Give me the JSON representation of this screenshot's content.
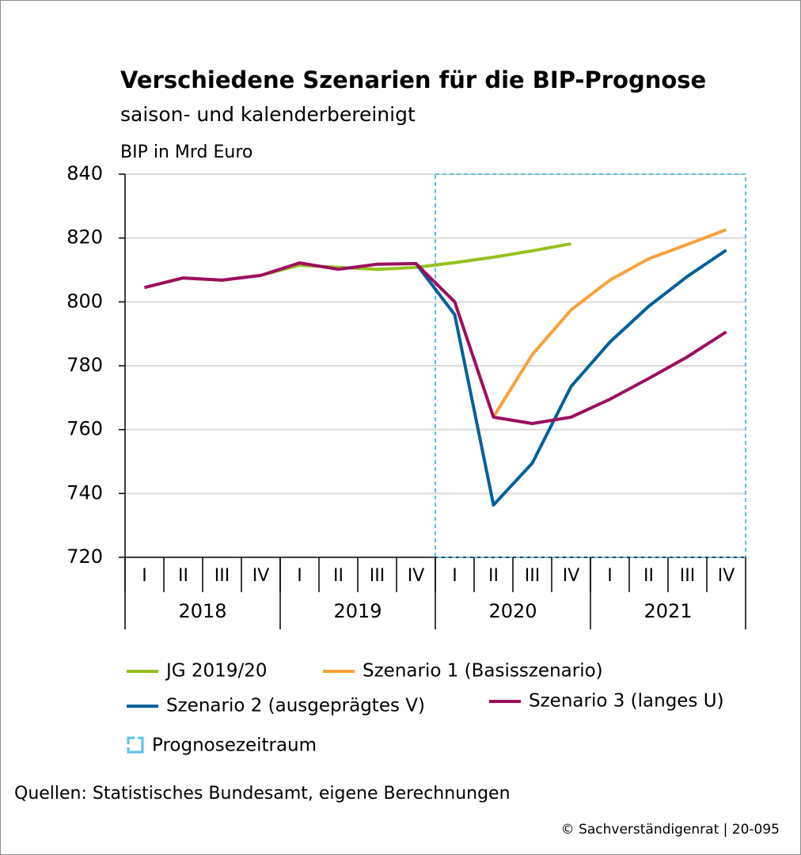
{
  "chart_data": {
    "type": "line",
    "title": "Verschiedene Szenarien für die BIP-Prognose",
    "subtitle": "saison- und kalenderbereinigt",
    "y_label": "BIP in Mrd Euro",
    "categories": [
      "I",
      "II",
      "III",
      "IV",
      "I",
      "II",
      "III",
      "IV",
      "I",
      "II",
      "III",
      "IV",
      "I",
      "II",
      "III",
      "IV"
    ],
    "x_groups": [
      "2018",
      "2019",
      "2020",
      "2021"
    ],
    "ylim": [
      720,
      840
    ],
    "yticks": [
      720,
      740,
      760,
      780,
      800,
      820,
      840
    ],
    "grid": true,
    "series": [
      {
        "name": "JG 2019/20",
        "color": "#95c11f",
        "values": [
          804.5,
          807.5,
          806.8,
          808.3,
          811.5,
          810.8,
          810.2,
          810.8,
          812.3,
          814,
          816,
          818.2,
          null,
          null,
          null,
          null
        ]
      },
      {
        "name": "Szenario 1 (Basisszenario)",
        "color": "#f9a13a",
        "values": [
          null,
          null,
          null,
          null,
          null,
          null,
          null,
          null,
          null,
          764,
          783.5,
          797.5,
          806.8,
          813.5,
          818,
          822.6
        ]
      },
      {
        "name": "Szenario 2 (ausgeprägtes V)",
        "color": "#00609c",
        "values": [
          null,
          null,
          null,
          null,
          null,
          null,
          null,
          812,
          796,
          736.4,
          749.5,
          773.5,
          787.4,
          798.6,
          808,
          816.2
        ]
      },
      {
        "name": "Szenario 3 (langes U)",
        "color": "#9c0e5f",
        "values": [
          804.5,
          807.5,
          806.8,
          808.3,
          812.2,
          810.2,
          811.8,
          812,
          800,
          763.9,
          761.9,
          763.9,
          769.5,
          776,
          782.8,
          790.6
        ]
      }
    ],
    "shaded_region": {
      "name": "Prognosezeitraum",
      "start": "2020",
      "color": "#5bc0eb"
    },
    "source": "Quellen: Statistisches Bundesamt, eigene Berechnungen",
    "copyright": "© Sachverständigenrat | 20-095"
  }
}
